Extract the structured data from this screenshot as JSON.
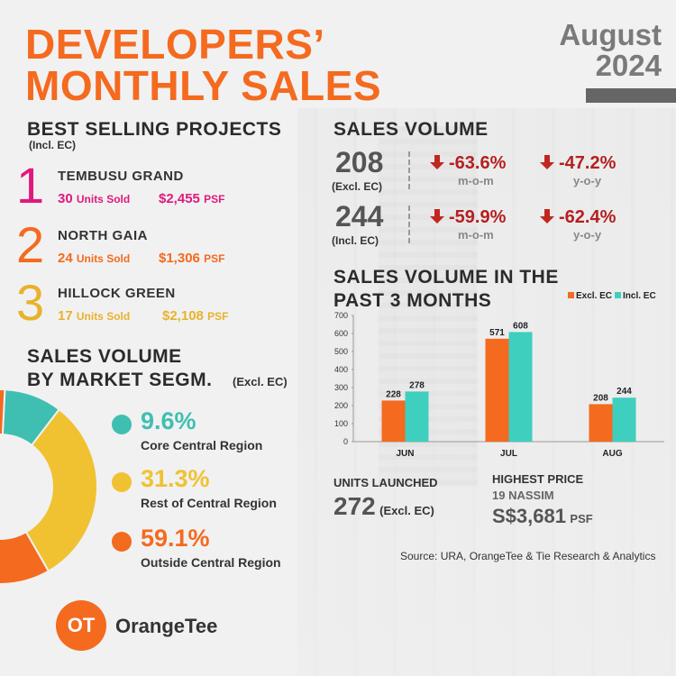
{
  "header": {
    "title_line1": "DEVELOPERS’",
    "title_line2": "MONTHLY SALES",
    "month": "August",
    "year": "2024"
  },
  "best_selling": {
    "title": "BEST SELLING PROJECTS",
    "subtitle": "(Incl. EC)",
    "units_label": "Units Sold",
    "psf_label": "PSF",
    "items": [
      {
        "rank": "1",
        "name": "TEMBUSU GRAND",
        "units": "30",
        "price": "$2,455",
        "color": "#e0197d"
      },
      {
        "rank": "2",
        "name": "NORTH GAIA",
        "units": "24",
        "price": "$1,306",
        "color": "#f46a1f"
      },
      {
        "rank": "3",
        "name": "HILLOCK GREEN",
        "units": "17",
        "price": "$2,108",
        "color": "#e8b22c"
      }
    ]
  },
  "sales_volume": {
    "title": "SALES VOLUME",
    "rows": [
      {
        "value": "208",
        "label": "(Excl. EC)",
        "mom": "-63.6%",
        "yoy": "-47.2%"
      },
      {
        "value": "244",
        "label": "(Incl. EC)",
        "mom": "-59.9%",
        "yoy": "-62.4%"
      }
    ],
    "mom_label": "m-o-m",
    "yoy_label": "y-o-y"
  },
  "segments": {
    "title_line1": "SALES VOLUME",
    "title_line2": "BY MARKET SEGM.",
    "subtitle": "(Excl. EC)",
    "items": [
      {
        "pct": "9.6%",
        "name": "Core Central Region",
        "color": "#3fbfb2",
        "value": 9.6
      },
      {
        "pct": "31.3%",
        "name": "Rest of Central Region",
        "color": "#f0c232",
        "value": 31.3
      },
      {
        "pct": "59.1%",
        "name": "Outside Central Region",
        "color": "#f46a1f",
        "value": 59.1
      }
    ]
  },
  "chart_section": {
    "title_line1": "SALES VOLUME IN THE",
    "title_line2": "PAST 3 MONTHS"
  },
  "chart_data": {
    "type": "bar",
    "categories": [
      "JUN",
      "JUL",
      "AUG"
    ],
    "series": [
      {
        "name": "Excl. EC",
        "values": [
          228,
          571,
          208
        ],
        "color": "#f46a1f"
      },
      {
        "name": "Incl. EC",
        "values": [
          278,
          608,
          244
        ],
        "color": "#3fcfbf"
      }
    ],
    "ylim": [
      0,
      700
    ],
    "yticks": [
      0,
      100,
      200,
      300,
      400,
      500,
      600,
      700
    ],
    "legend": "top-right"
  },
  "units_launched": {
    "title": "UNITS LAUNCHED",
    "value": "272",
    "label": "(Excl. EC)"
  },
  "highest_price": {
    "title": "HIGHEST PRICE",
    "project": "19 NASSIM",
    "value": "S$3,681",
    "unit": "PSF"
  },
  "source": "Source: URA, OrangeTee & Tie Research & Analytics",
  "logo": {
    "mark": "OT",
    "name": "OrangeTee"
  }
}
